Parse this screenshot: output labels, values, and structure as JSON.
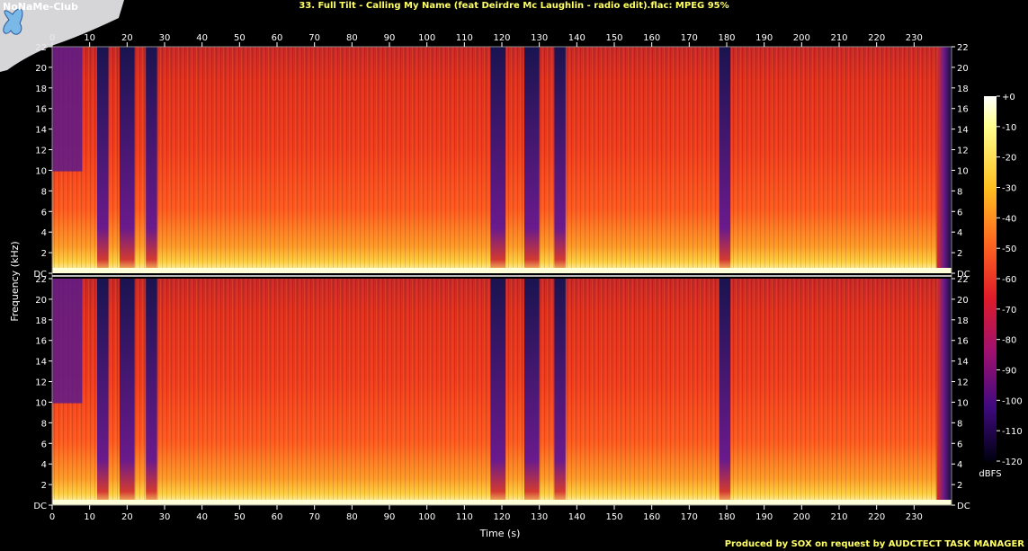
{
  "title": "33. Full Tilt - Calling My Name (feat Deirdre Mc Laughlin - radio edit).flac: MPEG 95%",
  "footer": "Produced by SOX on request by AUDCTECT TASK MANAGER",
  "logo_text": "NoNaMe-Club",
  "chart_data": {
    "type": "heatmap",
    "title": "33. Full Tilt - Calling My Name (feat Deirdre Mc Laughlin - radio edit).flac: MPEG 95%",
    "xlabel": "Time (s)",
    "ylabel": "Frequency (kHz)",
    "xlim": [
      0,
      240
    ],
    "ylim": [
      0,
      22
    ],
    "x_ticks": [
      "0",
      "10",
      "20",
      "30",
      "40",
      "50",
      "60",
      "70",
      "80",
      "90",
      "100",
      "110",
      "120",
      "130",
      "140",
      "150",
      "160",
      "170",
      "180",
      "190",
      "200",
      "210",
      "220",
      "230"
    ],
    "y_ticks": [
      "DC",
      "2",
      "4",
      "6",
      "8",
      "10",
      "12",
      "14",
      "16",
      "18",
      "20",
      "22"
    ],
    "channels": 2,
    "colorbar": {
      "label": "dBFS",
      "ticks": [
        "+0",
        "-10",
        "-20",
        "-30",
        "-40",
        "-50",
        "-60",
        "-70",
        "-80",
        "-90",
        "-100",
        "-110",
        "-120"
      ],
      "range": [
        -120,
        0
      ]
    },
    "dark_segments_s": [
      [
        12,
        15
      ],
      [
        18,
        22
      ],
      [
        25,
        28
      ],
      [
        117,
        121
      ],
      [
        126,
        130
      ],
      [
        134,
        137
      ],
      [
        178,
        181
      ]
    ],
    "colors": {
      "high": "#ffffc8",
      "mid": "#ff9020",
      "body": "#e8301c",
      "low": "#5a1a8a",
      "silence": "#12123a",
      "text_accent": "#ffff64"
    }
  }
}
